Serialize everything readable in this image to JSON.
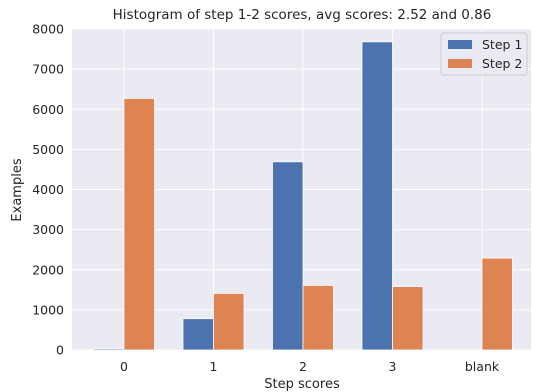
{
  "chart_data": {
    "type": "bar",
    "title": "Histogram of step 1-2 scores, avg scores: 2.52 and 0.86",
    "xlabel": "Step scores",
    "ylabel": "Examples",
    "categories": [
      "0",
      "1",
      "2",
      "3",
      "blank"
    ],
    "series": [
      {
        "name": "Step 1",
        "color": "#4c72b0",
        "values": [
          30,
          780,
          4690,
          7680,
          0
        ]
      },
      {
        "name": "Step 2",
        "color": "#dd8452",
        "values": [
          6270,
          1410,
          1610,
          1580,
          2290
        ]
      }
    ],
    "ylim": [
      0,
      8000
    ],
    "yticks": [
      0,
      1000,
      2000,
      3000,
      4000,
      5000,
      6000,
      7000,
      8000
    ],
    "grid": true,
    "plot_background": "#eaeaf2",
    "legend_position": "top-right"
  }
}
